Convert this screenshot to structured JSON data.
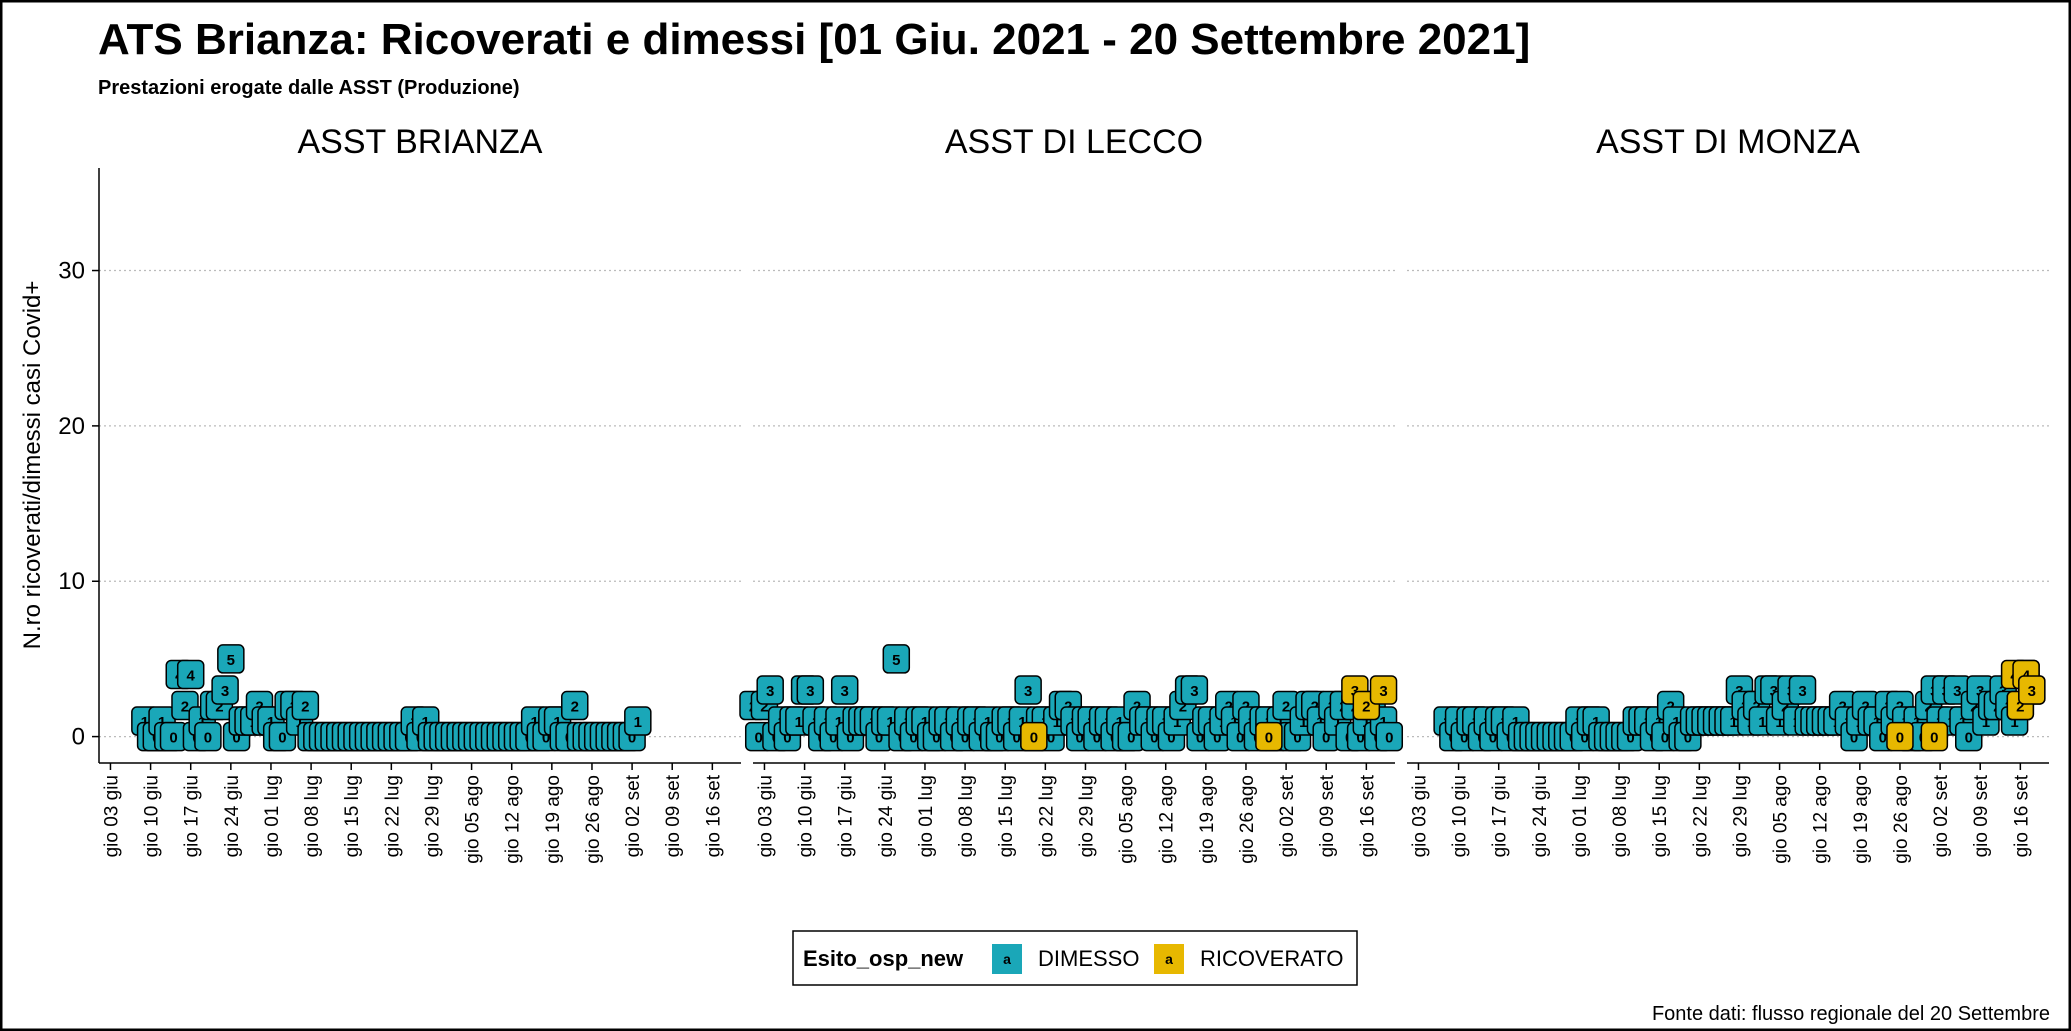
{
  "title": "ATS Brianza: Ricoverati e dimessi [01 Giu. 2021 - 20 Settembre 2021]",
  "subtitle": "Prestazioni erogate dalle ASST (Produzione)",
  "source": "Fonte dati: flusso regionale del 20 Settembre",
  "legend_title": "Esito_osp_new",
  "legend_glyph": "a",
  "grid": true,
  "x_axis": {
    "xlim": [
      "06-01",
      "09-21"
    ],
    "xticks": [
      {
        "value": "06-03",
        "label": "gio 03 giu"
      },
      {
        "value": "06-10",
        "label": "gio 10 giu"
      },
      {
        "value": "06-17",
        "label": "gio 17 giu"
      },
      {
        "value": "06-24",
        "label": "gio 24 giu"
      },
      {
        "value": "07-01",
        "label": "gio 01 lug"
      },
      {
        "value": "07-08",
        "label": "gio 08 lug"
      },
      {
        "value": "07-15",
        "label": "gio 15 lug"
      },
      {
        "value": "07-22",
        "label": "gio 22 lug"
      },
      {
        "value": "07-29",
        "label": "gio 29 lug"
      },
      {
        "value": "08-05",
        "label": "gio 05 ago"
      },
      {
        "value": "08-12",
        "label": "gio 12 ago"
      },
      {
        "value": "08-19",
        "label": "gio 19 ago"
      },
      {
        "value": "08-26",
        "label": "gio 26 ago"
      },
      {
        "value": "09-02",
        "label": "gio 02 set"
      },
      {
        "value": "09-09",
        "label": "gio 09 set"
      },
      {
        "value": "09-16",
        "label": "gio 16 set"
      }
    ]
  },
  "y_axis": {
    "label": "N.ro ricoverati/dimessi casi Covid+",
    "ylim": [
      -1.7,
      36.6
    ],
    "yticks": [
      0,
      10,
      20,
      30
    ]
  },
  "chart_data": [
    {
      "type": "label",
      "title": "ASST BRIANZA",
      "series": [
        {
          "name": "DIMESSO",
          "color": "#1aa7b8",
          "x": [
            "06-09",
            "06-10",
            "06-11",
            "06-12",
            "06-13",
            "06-14",
            "06-15",
            "06-16",
            "06-17",
            "06-18",
            "06-19",
            "06-20",
            "06-21",
            "06-22",
            "06-23",
            "06-24",
            "06-25",
            "06-26",
            "06-27",
            "06-28",
            "06-29",
            "06-30",
            "07-01",
            "07-02",
            "07-03",
            "07-04",
            "07-05",
            "07-06",
            "07-07",
            "07-08",
            "07-09",
            "07-10",
            "07-11",
            "07-12",
            "07-13",
            "07-14",
            "07-15",
            "07-16",
            "07-17",
            "07-18",
            "07-19",
            "07-20",
            "07-21",
            "07-22",
            "07-23",
            "07-24",
            "07-25",
            "07-26",
            "07-27",
            "07-28",
            "07-29",
            "07-30",
            "07-31",
            "08-01",
            "08-02",
            "08-03",
            "08-04",
            "08-05",
            "08-06",
            "08-07",
            "08-08",
            "08-09",
            "08-10",
            "08-11",
            "08-12",
            "08-13",
            "08-14",
            "08-15",
            "08-16",
            "08-17",
            "08-18",
            "08-19",
            "08-20",
            "08-21",
            "08-22",
            "08-23",
            "08-24",
            "08-25",
            "08-26",
            "08-27",
            "08-28",
            "08-29",
            "08-30",
            "08-31",
            "09-01",
            "09-02",
            "09-03"
          ],
          "values": [
            1,
            0,
            0,
            1,
            0,
            0,
            4,
            2,
            4,
            0,
            1,
            0,
            2,
            2,
            3,
            5,
            0,
            1,
            1,
            1,
            2,
            1,
            1,
            0,
            0,
            2,
            2,
            1,
            2,
            0,
            0,
            0,
            0,
            0,
            0,
            0,
            0,
            0,
            0,
            0,
            0,
            0,
            0,
            0,
            0,
            0,
            0,
            1,
            0,
            1,
            0,
            0,
            0,
            0,
            0,
            0,
            0,
            0,
            0,
            0,
            0,
            0,
            0,
            0,
            0,
            0,
            0,
            0,
            1,
            0,
            0,
            1,
            1,
            0,
            0,
            2,
            0,
            0,
            0,
            0,
            0,
            0,
            0,
            0,
            0,
            0,
            1
          ]
        }
      ]
    },
    {
      "type": "label",
      "title": "ASST DI LECCO",
      "series": [
        {
          "name": "DIMESSO",
          "color": "#1aa7b8",
          "x": [
            "06-01",
            "06-02",
            "06-03",
            "06-04",
            "06-05",
            "06-06",
            "06-07",
            "06-08",
            "06-09",
            "06-10",
            "06-11",
            "06-12",
            "06-13",
            "06-14",
            "06-15",
            "06-16",
            "06-17",
            "06-18",
            "06-19",
            "06-20",
            "06-21",
            "06-22",
            "06-23",
            "06-24",
            "06-25",
            "06-26",
            "06-27",
            "06-28",
            "06-29",
            "06-30",
            "07-01",
            "07-02",
            "07-03",
            "07-04",
            "07-05",
            "07-06",
            "07-07",
            "07-08",
            "07-09",
            "07-10",
            "07-11",
            "07-12",
            "07-13",
            "07-14",
            "07-15",
            "07-16",
            "07-17",
            "07-18",
            "07-19",
            "07-20",
            "07-21",
            "07-22",
            "07-23",
            "07-24",
            "07-25",
            "07-26",
            "07-27",
            "07-28",
            "07-29",
            "07-30",
            "07-31",
            "08-01",
            "08-02",
            "08-03",
            "08-04",
            "08-05",
            "08-06",
            "08-07",
            "08-08",
            "08-09",
            "08-10",
            "08-11",
            "08-12",
            "08-13",
            "08-14",
            "08-15",
            "08-16",
            "08-17",
            "08-18",
            "08-19",
            "08-20",
            "08-21",
            "08-22",
            "08-23",
            "08-24",
            "08-25",
            "08-26",
            "08-27",
            "08-28",
            "08-29",
            "08-30",
            "08-31",
            "09-01",
            "09-02",
            "09-03",
            "09-04",
            "09-05",
            "09-06",
            "09-07",
            "09-08",
            "09-09",
            "09-10",
            "09-11",
            "09-12",
            "09-13",
            "09-14",
            "09-15",
            "09-16",
            "09-17",
            "09-18",
            "09-19",
            "09-20"
          ],
          "values": [
            2,
            0,
            2,
            3,
            0,
            1,
            0,
            1,
            1,
            3,
            3,
            1,
            0,
            1,
            0,
            1,
            3,
            0,
            1,
            1,
            1,
            1,
            0,
            1,
            1,
            5,
            0,
            1,
            0,
            1,
            1,
            0,
            0,
            1,
            1,
            0,
            1,
            0,
            1,
            1,
            0,
            1,
            0,
            0,
            1,
            1,
            0,
            1,
            3,
            0,
            1,
            1,
            0,
            1,
            2,
            2,
            1,
            0,
            1,
            1,
            0,
            1,
            1,
            0,
            1,
            0,
            0,
            2,
            1,
            1,
            0,
            1,
            1,
            0,
            1,
            2,
            3,
            3,
            0,
            1,
            1,
            0,
            1,
            2,
            1,
            0,
            2,
            1,
            0,
            1,
            1,
            0,
            1,
            2,
            0,
            0,
            1,
            2,
            2,
            1,
            0,
            2,
            1,
            2,
            0,
            2,
            0,
            1,
            2,
            0,
            1,
            0
          ]
        },
        {
          "name": "RICOVERATO",
          "color": "#e7b800",
          "x": [
            "07-20",
            "08-30",
            "09-14",
            "09-16",
            "09-19"
          ],
          "values": [
            0,
            0,
            3,
            2,
            3
          ]
        }
      ]
    },
    {
      "type": "label",
      "title": "ASST DI MONZA",
      "series": [
        {
          "name": "DIMESSO",
          "color": "#1aa7b8",
          "x": [
            "06-08",
            "06-09",
            "06-10",
            "06-11",
            "06-12",
            "06-13",
            "06-14",
            "06-15",
            "06-16",
            "06-17",
            "06-18",
            "06-19",
            "06-20",
            "06-21",
            "06-22",
            "06-23",
            "06-24",
            "06-25",
            "06-26",
            "06-27",
            "06-28",
            "06-29",
            "06-30",
            "07-01",
            "07-02",
            "07-03",
            "07-04",
            "07-05",
            "07-06",
            "07-07",
            "07-08",
            "07-09",
            "07-10",
            "07-11",
            "07-12",
            "07-13",
            "07-14",
            "07-15",
            "07-16",
            "07-17",
            "07-18",
            "07-19",
            "07-20",
            "07-21",
            "07-22",
            "07-23",
            "07-24",
            "07-25",
            "07-26",
            "07-27",
            "07-28",
            "07-29",
            "07-30",
            "07-31",
            "08-01",
            "08-02",
            "08-03",
            "08-04",
            "08-05",
            "08-06",
            "08-07",
            "08-08",
            "08-09",
            "08-10",
            "08-11",
            "08-12",
            "08-13",
            "08-14",
            "08-15",
            "08-16",
            "08-17",
            "08-18",
            "08-19",
            "08-20",
            "08-21",
            "08-22",
            "08-23",
            "08-24",
            "08-25",
            "08-26",
            "08-27",
            "08-28",
            "08-29",
            "08-30",
            "08-31",
            "09-01",
            "09-02",
            "09-03",
            "09-04",
            "09-05",
            "09-06",
            "09-07",
            "09-08",
            "09-09",
            "09-10",
            "09-11",
            "09-12",
            "09-13",
            "09-14",
            "09-15",
            "09-16",
            "09-17",
            "09-18"
          ],
          "values": [
            1,
            0,
            1,
            0,
            1,
            1,
            0,
            1,
            0,
            1,
            1,
            0,
            1,
            0,
            0,
            0,
            0,
            0,
            0,
            0,
            0,
            0,
            0,
            1,
            0,
            1,
            1,
            0,
            0,
            0,
            0,
            0,
            0,
            1,
            1,
            1,
            0,
            1,
            0,
            2,
            1,
            0,
            0,
            1,
            1,
            1,
            1,
            1,
            1,
            1,
            1,
            3,
            2,
            1,
            2,
            1,
            3,
            3,
            1,
            2,
            3,
            1,
            3,
            1,
            1,
            1,
            1,
            1,
            1,
            2,
            1,
            0,
            1,
            2,
            1,
            1,
            0,
            2,
            1,
            2,
            1,
            0,
            1,
            0,
            2,
            3,
            1,
            3,
            1,
            3,
            1,
            0,
            2,
            3,
            1,
            2,
            2,
            3,
            2,
            1,
            2,
            4,
            3
          ]
        },
        {
          "name": "RICOVERATO",
          "color": "#e7b800",
          "x": [
            "08-26",
            "09-01",
            "09-15",
            "09-16",
            "09-17",
            "09-18"
          ],
          "values": [
            0,
            0,
            4,
            2,
            4,
            3
          ]
        }
      ]
    }
  ]
}
